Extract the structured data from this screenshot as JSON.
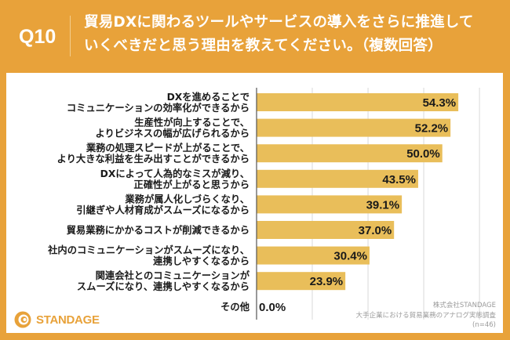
{
  "header": {
    "question_number": "Q10",
    "title_lines": [
      "貿易DXに関わるツールやサービスの導入をさらに推進して",
      "いくべきだと思う理由を教えてください。（複数回答）"
    ]
  },
  "colors": {
    "background": "#E8A23A",
    "bar": "#E9BE5A",
    "panel": "#FFFFFF",
    "gridline": "#D9D9D9",
    "axis": "#555555"
  },
  "chart_data": {
    "type": "bar",
    "orientation": "horizontal",
    "title": "貿易DXに関わるツールやサービスの導入をさらに推進していくべきだと思う理由を教えてください。（複数回答）",
    "xlabel": "",
    "ylabel": "",
    "xlim": [
      0,
      60
    ],
    "grid": true,
    "grid_step": 15,
    "value_suffix": "%",
    "categories": [
      [
        "DXを進めることで",
        "コミュニケーションの効率化ができるから"
      ],
      [
        "生産性が向上することで、",
        "よりビジネスの幅が広げられるから"
      ],
      [
        "業務の処理スピードが上がることで、",
        "より大きな利益を生み出すことができるから"
      ],
      [
        "DXによって人為的なミスが減り、",
        "正確性が上がると思うから"
      ],
      [
        "業務が属人化しづらくなり、",
        "引継ぎや人材育成がスムーズになるから"
      ],
      [
        "貿易業務にかかるコストが削減できるから"
      ],
      [
        "社内のコミュニケーションがスムーズになり、",
        "連携しやすくなるから"
      ],
      [
        "関連会社とのコミュニケーションが",
        "スムーズになり、連携しやすくなるから"
      ],
      [
        "その他"
      ]
    ],
    "values": [
      54.3,
      52.2,
      50.0,
      43.5,
      39.1,
      37.0,
      30.4,
      23.9,
      0.0
    ],
    "value_labels": [
      "54.3%",
      "52.2%",
      "50.0%",
      "43.5%",
      "39.1%",
      "37.0%",
      "30.4%",
      "23.9%",
      "0.0%"
    ]
  },
  "footer": {
    "company": "株式会社STANDAGE",
    "survey": "大手企業における貿易業務のアナログ実態調査",
    "sample": "(n=46)"
  },
  "logo": {
    "text": "STANDAGE"
  }
}
